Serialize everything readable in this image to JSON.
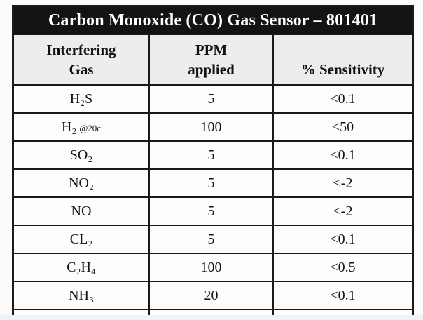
{
  "table": {
    "title": "Carbon Monoxide (CO) Gas Sensor – 801401",
    "header": {
      "col1_line1": "Interfering",
      "col1_line2": "Gas",
      "col2_line1": "PPM",
      "col2_line2": "applied",
      "col3": "% Sensitivity"
    },
    "rows": [
      {
        "gas": "H₂S",
        "ppm": "5",
        "sensitivity": "<0.1"
      },
      {
        "gas": "H₂",
        "note": "@20c",
        "ppm": "100",
        "sensitivity": "<50"
      },
      {
        "gas": "SO₂",
        "ppm": "5",
        "sensitivity": "<0.1"
      },
      {
        "gas": "NO₂",
        "ppm": "5",
        "sensitivity": "<-2"
      },
      {
        "gas": "NO",
        "ppm": "5",
        "sensitivity": "<-2"
      },
      {
        "gas": "CL₂",
        "ppm": "5",
        "sensitivity": "<0.1"
      },
      {
        "gas": "C₂H₄",
        "ppm": "100",
        "sensitivity": "<0.5"
      },
      {
        "gas": "NH₃",
        "ppm": "20",
        "sensitivity": "<0.1"
      }
    ]
  },
  "colors": {
    "title_bg": "#131313",
    "title_text": "#ffffff",
    "header_bg": "#ededed",
    "cell_bg": "#fdfdfd",
    "border": "#1a1a1a",
    "page_bg": "#fbfbfa",
    "bottom_strip": "#ecf3f9"
  }
}
